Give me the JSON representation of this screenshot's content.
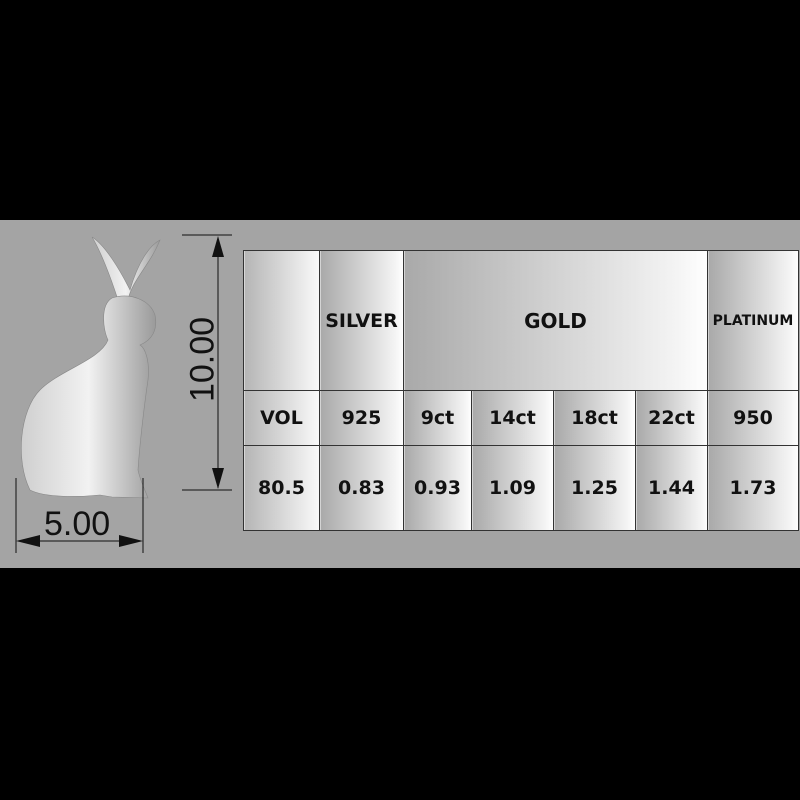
{
  "dimensions": {
    "width": "5.00",
    "height": "10.00"
  },
  "table": {
    "header": [
      "",
      "SILVER",
      "GOLD",
      "PLATINUM"
    ],
    "grades": [
      "VOL",
      "925",
      "9ct",
      "14ct",
      "18ct",
      "22ct",
      "950"
    ],
    "values": [
      "80.5",
      "0.83",
      "0.93",
      "1.09",
      "1.25",
      "1.44",
      "1.73"
    ]
  },
  "colors": {
    "background": "#000000",
    "band": "#a4a4a4"
  }
}
